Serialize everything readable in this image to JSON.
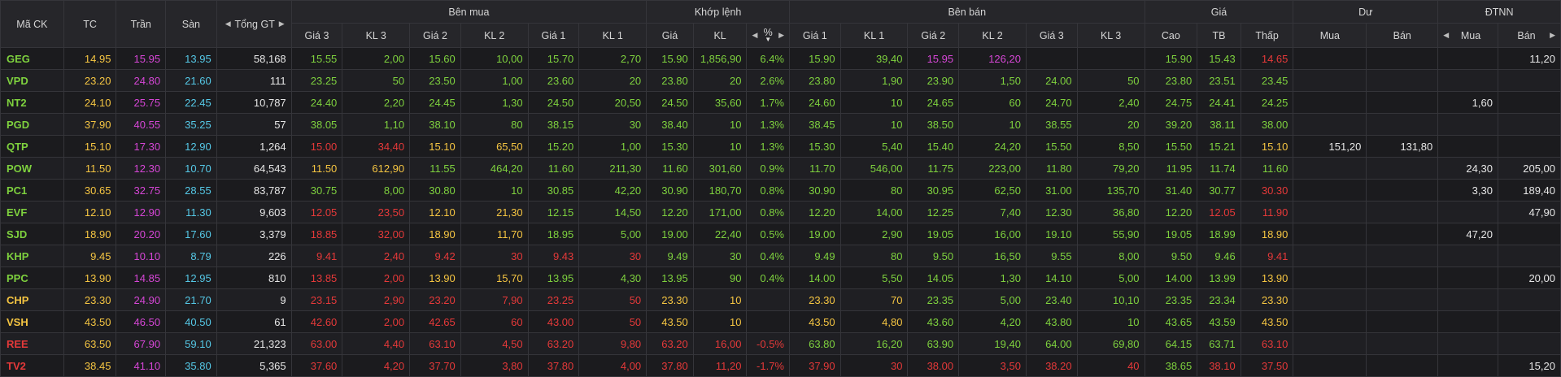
{
  "colors": {
    "up": "#7ed13e",
    "ref": "#f5c542",
    "down": "#e53939",
    "ceil": "#d646d6",
    "floor": "#55c8e6",
    "white": "#e6e6e6"
  },
  "header": {
    "symbol": "Mã CK",
    "tc": "TC",
    "ceil": "Trần",
    "floor": "Sàn",
    "total": "Tổng GT",
    "groups": {
      "buy": "Bên mua",
      "match": "Khớp lệnh",
      "sell": "Bên bán",
      "price": "Giá",
      "residual": "Dư",
      "foreign": "ĐTNN"
    },
    "buy_cols": [
      "Giá 3",
      "KL 3",
      "Giá 2",
      "KL 2",
      "Giá 1",
      "KL 1"
    ],
    "match_cols": [
      "Giá",
      "KL",
      "%"
    ],
    "sell_cols": [
      "Giá 1",
      "KL 1",
      "Giá 2",
      "KL 2",
      "Giá 3",
      "KL 3"
    ],
    "price_cols": [
      "Cao",
      "TB",
      "Thấp"
    ],
    "residual_cols": [
      "Mua",
      "Bán"
    ],
    "foreign_cols": [
      "Mua",
      "Bán"
    ]
  },
  "icons": {
    "left": "caret-left-icon",
    "right": "caret-right-icon",
    "sort_down": "sort-down-icon"
  },
  "rows": [
    {
      "sym": [
        "GEG",
        "up"
      ],
      "tc": "14.95",
      "ceil": "15.95",
      "floor": "13.95",
      "total": "58,168",
      "b3": [
        "15.55",
        "up"
      ],
      "k3": [
        "2,00",
        "up"
      ],
      "b2": [
        "15.60",
        "up"
      ],
      "k2": [
        "10,00",
        "up"
      ],
      "b1": [
        "15.70",
        "up"
      ],
      "k1": [
        "2,70",
        "up"
      ],
      "mp": [
        "15.90",
        "up"
      ],
      "mk": [
        "1,856,90",
        "up"
      ],
      "pct": [
        "6.4%",
        "up"
      ],
      "s1": [
        "15.90",
        "up"
      ],
      "sk1": [
        "39,40",
        "up"
      ],
      "s2": [
        "15.95",
        "ceil"
      ],
      "sk2": [
        "126,20",
        "ceil"
      ],
      "s3": [
        "",
        ""
      ],
      "sk3": [
        "",
        ""
      ],
      "hi": [
        "15.90",
        "up"
      ],
      "avg": [
        "15.43",
        "up"
      ],
      "lo": [
        "14.65",
        "down"
      ],
      "rb": "",
      "rs": "",
      "fb": "",
      "fs": "11,20"
    },
    {
      "sym": [
        "VPD",
        "up"
      ],
      "tc": "23.20",
      "ceil": "24.80",
      "floor": "21.60",
      "total": "111",
      "b3": [
        "23.25",
        "up"
      ],
      "k3": [
        "50",
        "up"
      ],
      "b2": [
        "23.50",
        "up"
      ],
      "k2": [
        "1,00",
        "up"
      ],
      "b1": [
        "23.60",
        "up"
      ],
      "k1": [
        "20",
        "up"
      ],
      "mp": [
        "23.80",
        "up"
      ],
      "mk": [
        "20",
        "up"
      ],
      "pct": [
        "2.6%",
        "up"
      ],
      "s1": [
        "23.80",
        "up"
      ],
      "sk1": [
        "1,90",
        "up"
      ],
      "s2": [
        "23.90",
        "up"
      ],
      "sk2": [
        "1,50",
        "up"
      ],
      "s3": [
        "24.00",
        "up"
      ],
      "sk3": [
        "50",
        "up"
      ],
      "hi": [
        "23.80",
        "up"
      ],
      "avg": [
        "23.51",
        "up"
      ],
      "lo": [
        "23.45",
        "up"
      ],
      "rb": "",
      "rs": "",
      "fb": "",
      "fs": ""
    },
    {
      "sym": [
        "NT2",
        "up"
      ],
      "tc": "24.10",
      "ceil": "25.75",
      "floor": "22.45",
      "total": "10,787",
      "b3": [
        "24.40",
        "up"
      ],
      "k3": [
        "2,20",
        "up"
      ],
      "b2": [
        "24.45",
        "up"
      ],
      "k2": [
        "1,30",
        "up"
      ],
      "b1": [
        "24.50",
        "up"
      ],
      "k1": [
        "20,50",
        "up"
      ],
      "mp": [
        "24.50",
        "up"
      ],
      "mk": [
        "35,60",
        "up"
      ],
      "pct": [
        "1.7%",
        "up"
      ],
      "s1": [
        "24.60",
        "up"
      ],
      "sk1": [
        "10",
        "up"
      ],
      "s2": [
        "24.65",
        "up"
      ],
      "sk2": [
        "60",
        "up"
      ],
      "s3": [
        "24.70",
        "up"
      ],
      "sk3": [
        "2,40",
        "up"
      ],
      "hi": [
        "24.75",
        "up"
      ],
      "avg": [
        "24.41",
        "up"
      ],
      "lo": [
        "24.25",
        "up"
      ],
      "rb": "",
      "rs": "",
      "fb": "1,60",
      "fs": ""
    },
    {
      "sym": [
        "PGD",
        "up"
      ],
      "tc": "37.90",
      "ceil": "40.55",
      "floor": "35.25",
      "total": "57",
      "b3": [
        "38.05",
        "up"
      ],
      "k3": [
        "1,10",
        "up"
      ],
      "b2": [
        "38.10",
        "up"
      ],
      "k2": [
        "80",
        "up"
      ],
      "b1": [
        "38.15",
        "up"
      ],
      "k1": [
        "30",
        "up"
      ],
      "mp": [
        "38.40",
        "up"
      ],
      "mk": [
        "10",
        "up"
      ],
      "pct": [
        "1.3%",
        "up"
      ],
      "s1": [
        "38.45",
        "up"
      ],
      "sk1": [
        "10",
        "up"
      ],
      "s2": [
        "38.50",
        "up"
      ],
      "sk2": [
        "10",
        "up"
      ],
      "s3": [
        "38.55",
        "up"
      ],
      "sk3": [
        "20",
        "up"
      ],
      "hi": [
        "39.20",
        "up"
      ],
      "avg": [
        "38.11",
        "up"
      ],
      "lo": [
        "38.00",
        "up"
      ],
      "rb": "",
      "rs": "",
      "fb": "",
      "fs": ""
    },
    {
      "sym": [
        "QTP",
        "up"
      ],
      "tc": "15.10",
      "ceil": "17.30",
      "floor": "12.90",
      "total": "1,264",
      "b3": [
        "15.00",
        "down"
      ],
      "k3": [
        "34,40",
        "down"
      ],
      "b2": [
        "15.10",
        "ref"
      ],
      "k2": [
        "65,50",
        "ref"
      ],
      "b1": [
        "15.20",
        "up"
      ],
      "k1": [
        "1,00",
        "up"
      ],
      "mp": [
        "15.30",
        "up"
      ],
      "mk": [
        "10",
        "up"
      ],
      "pct": [
        "1.3%",
        "up"
      ],
      "s1": [
        "15.30",
        "up"
      ],
      "sk1": [
        "5,40",
        "up"
      ],
      "s2": [
        "15.40",
        "up"
      ],
      "sk2": [
        "24,20",
        "up"
      ],
      "s3": [
        "15.50",
        "up"
      ],
      "sk3": [
        "8,50",
        "up"
      ],
      "hi": [
        "15.50",
        "up"
      ],
      "avg": [
        "15.21",
        "up"
      ],
      "lo": [
        "15.10",
        "ref"
      ],
      "rb": "151,20",
      "rs": "131,80",
      "fb": "",
      "fs": ""
    },
    {
      "sym": [
        "POW",
        "up"
      ],
      "tc": "11.50",
      "ceil": "12.30",
      "floor": "10.70",
      "total": "64,543",
      "b3": [
        "11.50",
        "ref"
      ],
      "k3": [
        "612,90",
        "ref"
      ],
      "b2": [
        "11.55",
        "up"
      ],
      "k2": [
        "464,20",
        "up"
      ],
      "b1": [
        "11.60",
        "up"
      ],
      "k1": [
        "211,30",
        "up"
      ],
      "mp": [
        "11.60",
        "up"
      ],
      "mk": [
        "301,60",
        "up"
      ],
      "pct": [
        "0.9%",
        "up"
      ],
      "s1": [
        "11.70",
        "up"
      ],
      "sk1": [
        "546,00",
        "up"
      ],
      "s2": [
        "11.75",
        "up"
      ],
      "sk2": [
        "223,00",
        "up"
      ],
      "s3": [
        "11.80",
        "up"
      ],
      "sk3": [
        "79,20",
        "up"
      ],
      "hi": [
        "11.95",
        "up"
      ],
      "avg": [
        "11.74",
        "up"
      ],
      "lo": [
        "11.60",
        "up"
      ],
      "rb": "",
      "rs": "",
      "fb": "24,30",
      "fs": "205,00"
    },
    {
      "sym": [
        "PC1",
        "up"
      ],
      "tc": "30.65",
      "ceil": "32.75",
      "floor": "28.55",
      "total": "83,787",
      "b3": [
        "30.75",
        "up"
      ],
      "k3": [
        "8,00",
        "up"
      ],
      "b2": [
        "30.80",
        "up"
      ],
      "k2": [
        "10",
        "up"
      ],
      "b1": [
        "30.85",
        "up"
      ],
      "k1": [
        "42,20",
        "up"
      ],
      "mp": [
        "30.90",
        "up"
      ],
      "mk": [
        "180,70",
        "up"
      ],
      "pct": [
        "0.8%",
        "up"
      ],
      "s1": [
        "30.90",
        "up"
      ],
      "sk1": [
        "80",
        "up"
      ],
      "s2": [
        "30.95",
        "up"
      ],
      "sk2": [
        "62,50",
        "up"
      ],
      "s3": [
        "31.00",
        "up"
      ],
      "sk3": [
        "135,70",
        "up"
      ],
      "hi": [
        "31.40",
        "up"
      ],
      "avg": [
        "30.77",
        "up"
      ],
      "lo": [
        "30.30",
        "down"
      ],
      "rb": "",
      "rs": "",
      "fb": "3,30",
      "fs": "189,40"
    },
    {
      "sym": [
        "EVF",
        "up"
      ],
      "tc": "12.10",
      "ceil": "12.90",
      "floor": "11.30",
      "total": "9,603",
      "b3": [
        "12.05",
        "down"
      ],
      "k3": [
        "23,50",
        "down"
      ],
      "b2": [
        "12.10",
        "ref"
      ],
      "k2": [
        "21,30",
        "ref"
      ],
      "b1": [
        "12.15",
        "up"
      ],
      "k1": [
        "14,50",
        "up"
      ],
      "mp": [
        "12.20",
        "up"
      ],
      "mk": [
        "171,00",
        "up"
      ],
      "pct": [
        "0.8%",
        "up"
      ],
      "s1": [
        "12.20",
        "up"
      ],
      "sk1": [
        "14,00",
        "up"
      ],
      "s2": [
        "12.25",
        "up"
      ],
      "sk2": [
        "7,40",
        "up"
      ],
      "s3": [
        "12.30",
        "up"
      ],
      "sk3": [
        "36,80",
        "up"
      ],
      "hi": [
        "12.20",
        "up"
      ],
      "avg": [
        "12.05",
        "down"
      ],
      "lo": [
        "11.90",
        "down"
      ],
      "rb": "",
      "rs": "",
      "fb": "",
      "fs": "47,90"
    },
    {
      "sym": [
        "SJD",
        "up"
      ],
      "tc": "18.90",
      "ceil": "20.20",
      "floor": "17.60",
      "total": "3,379",
      "b3": [
        "18.85",
        "down"
      ],
      "k3": [
        "32,00",
        "down"
      ],
      "b2": [
        "18.90",
        "ref"
      ],
      "k2": [
        "11,70",
        "ref"
      ],
      "b1": [
        "18.95",
        "up"
      ],
      "k1": [
        "5,00",
        "up"
      ],
      "mp": [
        "19.00",
        "up"
      ],
      "mk": [
        "22,40",
        "up"
      ],
      "pct": [
        "0.5%",
        "up"
      ],
      "s1": [
        "19.00",
        "up"
      ],
      "sk1": [
        "2,90",
        "up"
      ],
      "s2": [
        "19.05",
        "up"
      ],
      "sk2": [
        "16,00",
        "up"
      ],
      "s3": [
        "19.10",
        "up"
      ],
      "sk3": [
        "55,90",
        "up"
      ],
      "hi": [
        "19.05",
        "up"
      ],
      "avg": [
        "18.99",
        "up"
      ],
      "lo": [
        "18.90",
        "ref"
      ],
      "rb": "",
      "rs": "",
      "fb": "47,20",
      "fs": ""
    },
    {
      "sym": [
        "KHP",
        "up"
      ],
      "tc": "9.45",
      "ceil": "10.10",
      "floor": "8.79",
      "total": "226",
      "b3": [
        "9.41",
        "down"
      ],
      "k3": [
        "2,40",
        "down"
      ],
      "b2": [
        "9.42",
        "down"
      ],
      "k2": [
        "30",
        "down"
      ],
      "b1": [
        "9.43",
        "down"
      ],
      "k1": [
        "30",
        "down"
      ],
      "mp": [
        "9.49",
        "up"
      ],
      "mk": [
        "30",
        "up"
      ],
      "pct": [
        "0.4%",
        "up"
      ],
      "s1": [
        "9.49",
        "up"
      ],
      "sk1": [
        "80",
        "up"
      ],
      "s2": [
        "9.50",
        "up"
      ],
      "sk2": [
        "16,50",
        "up"
      ],
      "s3": [
        "9.55",
        "up"
      ],
      "sk3": [
        "8,00",
        "up"
      ],
      "hi": [
        "9.50",
        "up"
      ],
      "avg": [
        "9.46",
        "up"
      ],
      "lo": [
        "9.41",
        "down"
      ],
      "rb": "",
      "rs": "",
      "fb": "",
      "fs": ""
    },
    {
      "sym": [
        "PPC",
        "up"
      ],
      "tc": "13.90",
      "ceil": "14.85",
      "floor": "12.95",
      "total": "810",
      "b3": [
        "13.85",
        "down"
      ],
      "k3": [
        "2,00",
        "down"
      ],
      "b2": [
        "13.90",
        "ref"
      ],
      "k2": [
        "15,70",
        "ref"
      ],
      "b1": [
        "13.95",
        "up"
      ],
      "k1": [
        "4,30",
        "up"
      ],
      "mp": [
        "13.95",
        "up"
      ],
      "mk": [
        "90",
        "up"
      ],
      "pct": [
        "0.4%",
        "up"
      ],
      "s1": [
        "14.00",
        "up"
      ],
      "sk1": [
        "5,50",
        "up"
      ],
      "s2": [
        "14.05",
        "up"
      ],
      "sk2": [
        "1,30",
        "up"
      ],
      "s3": [
        "14.10",
        "up"
      ],
      "sk3": [
        "5,00",
        "up"
      ],
      "hi": [
        "14.00",
        "up"
      ],
      "avg": [
        "13.99",
        "up"
      ],
      "lo": [
        "13.90",
        "ref"
      ],
      "rb": "",
      "rs": "",
      "fb": "",
      "fs": "20,00"
    },
    {
      "sym": [
        "CHP",
        "ref"
      ],
      "tc": "23.30",
      "ceil": "24.90",
      "floor": "21.70",
      "total": "9",
      "b3": [
        "23.15",
        "down"
      ],
      "k3": [
        "2,90",
        "down"
      ],
      "b2": [
        "23.20",
        "down"
      ],
      "k2": [
        "7,90",
        "down"
      ],
      "b1": [
        "23.25",
        "down"
      ],
      "k1": [
        "50",
        "down"
      ],
      "mp": [
        "23.30",
        "ref"
      ],
      "mk": [
        "10",
        "ref"
      ],
      "pct": [
        "",
        ""
      ],
      "s1": [
        "23.30",
        "ref"
      ],
      "sk1": [
        "70",
        "ref"
      ],
      "s2": [
        "23.35",
        "up"
      ],
      "sk2": [
        "5,00",
        "up"
      ],
      "s3": [
        "23.40",
        "up"
      ],
      "sk3": [
        "10,10",
        "up"
      ],
      "hi": [
        "23.35",
        "up"
      ],
      "avg": [
        "23.34",
        "up"
      ],
      "lo": [
        "23.30",
        "ref"
      ],
      "rb": "",
      "rs": "",
      "fb": "",
      "fs": ""
    },
    {
      "sym": [
        "VSH",
        "ref"
      ],
      "tc": "43.50",
      "ceil": "46.50",
      "floor": "40.50",
      "total": "61",
      "b3": [
        "42.60",
        "down"
      ],
      "k3": [
        "2,00",
        "down"
      ],
      "b2": [
        "42.65",
        "down"
      ],
      "k2": [
        "60",
        "down"
      ],
      "b1": [
        "43.00",
        "down"
      ],
      "k1": [
        "50",
        "down"
      ],
      "mp": [
        "43.50",
        "ref"
      ],
      "mk": [
        "10",
        "ref"
      ],
      "pct": [
        "",
        ""
      ],
      "s1": [
        "43.50",
        "ref"
      ],
      "sk1": [
        "4,80",
        "ref"
      ],
      "s2": [
        "43.60",
        "up"
      ],
      "sk2": [
        "4,20",
        "up"
      ],
      "s3": [
        "43.80",
        "up"
      ],
      "sk3": [
        "10",
        "up"
      ],
      "hi": [
        "43.65",
        "up"
      ],
      "avg": [
        "43.59",
        "up"
      ],
      "lo": [
        "43.50",
        "ref"
      ],
      "rb": "",
      "rs": "",
      "fb": "",
      "fs": ""
    },
    {
      "sym": [
        "REE",
        "down"
      ],
      "tc": "63.50",
      "ceil": "67.90",
      "floor": "59.10",
      "total": "21,323",
      "b3": [
        "63.00",
        "down"
      ],
      "k3": [
        "4,40",
        "down"
      ],
      "b2": [
        "63.10",
        "down"
      ],
      "k2": [
        "4,50",
        "down"
      ],
      "b1": [
        "63.20",
        "down"
      ],
      "k1": [
        "9,80",
        "down"
      ],
      "mp": [
        "63.20",
        "down"
      ],
      "mk": [
        "16,00",
        "down"
      ],
      "pct": [
        "-0.5%",
        "down"
      ],
      "s1": [
        "63.80",
        "up"
      ],
      "sk1": [
        "16,20",
        "up"
      ],
      "s2": [
        "63.90",
        "up"
      ],
      "sk2": [
        "19,40",
        "up"
      ],
      "s3": [
        "64.00",
        "up"
      ],
      "sk3": [
        "69,80",
        "up"
      ],
      "hi": [
        "64.15",
        "up"
      ],
      "avg": [
        "63.71",
        "up"
      ],
      "lo": [
        "63.10",
        "down"
      ],
      "rb": "",
      "rs": "",
      "fb": "",
      "fs": ""
    },
    {
      "sym": [
        "TV2",
        "down"
      ],
      "tc": "38.45",
      "ceil": "41.10",
      "floor": "35.80",
      "total": "5,365",
      "b3": [
        "37.60",
        "down"
      ],
      "k3": [
        "4,20",
        "down"
      ],
      "b2": [
        "37.70",
        "down"
      ],
      "k2": [
        "3,80",
        "down"
      ],
      "b1": [
        "37.80",
        "down"
      ],
      "k1": [
        "4,00",
        "down"
      ],
      "mp": [
        "37.80",
        "down"
      ],
      "mk": [
        "11,20",
        "down"
      ],
      "pct": [
        "-1.7%",
        "down"
      ],
      "s1": [
        "37.90",
        "down"
      ],
      "sk1": [
        "30",
        "down"
      ],
      "s2": [
        "38.00",
        "down"
      ],
      "sk2": [
        "3,50",
        "down"
      ],
      "s3": [
        "38.20",
        "down"
      ],
      "sk3": [
        "40",
        "down"
      ],
      "hi": [
        "38.65",
        "up"
      ],
      "avg": [
        "38.10",
        "down"
      ],
      "lo": [
        "37.50",
        "down"
      ],
      "rb": "",
      "rs": "",
      "fb": "",
      "fs": "15,20"
    }
  ]
}
